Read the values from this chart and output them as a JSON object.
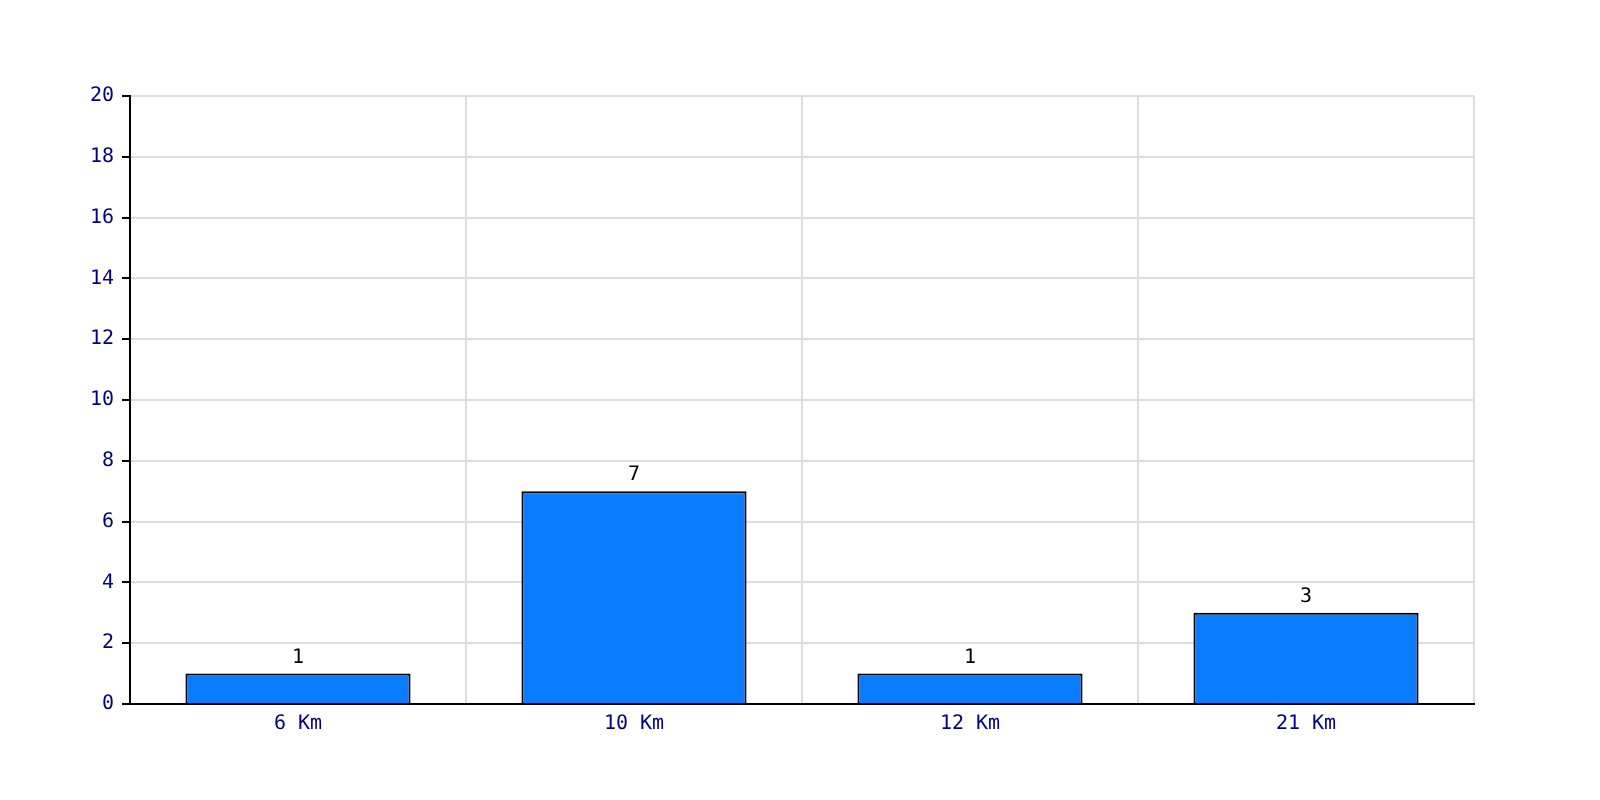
{
  "chart_data": {
    "type": "bar",
    "categories": [
      "6 Km",
      "10 Km",
      "12 Km",
      "21 Km"
    ],
    "values": [
      1,
      7,
      1,
      3
    ],
    "color": "#0a7cff",
    "ylim": [
      0,
      20
    ],
    "yticks": [
      0,
      2,
      4,
      6,
      8,
      10,
      12,
      14,
      16,
      18,
      20
    ],
    "grid": true,
    "data_labels": true
  }
}
